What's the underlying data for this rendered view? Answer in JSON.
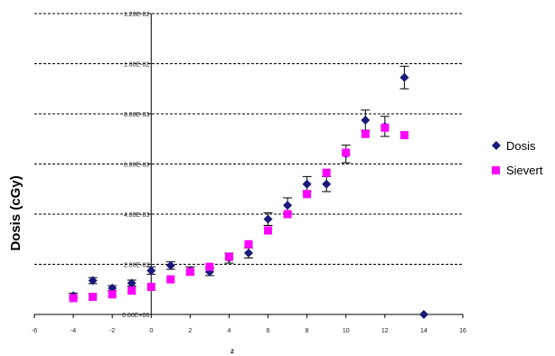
{
  "chart_data": {
    "type": "scatter",
    "xlabel": "z",
    "ylabel": "Dosis (cGy)",
    "xlim": [
      -6,
      16
    ],
    "ylim": [
      0,
      0.012
    ],
    "x_ticks": [
      "-6",
      "-4",
      "-2",
      "0",
      "2",
      "4",
      "6",
      "8",
      "10",
      "12",
      "14",
      "16"
    ],
    "x_tick_values": [
      -6,
      -4,
      -2,
      0,
      2,
      4,
      6,
      8,
      10,
      12,
      14,
      16
    ],
    "y_ticks": [
      "0.00E+00",
      "2.00E-03",
      "4.00E-03",
      "6.00E-03",
      "8.00E-03",
      "1.00E-02",
      "1.20E-02"
    ],
    "y_tick_values": [
      0,
      0.002,
      0.004,
      0.006,
      0.008,
      0.01,
      0.012
    ],
    "grid": "horizontal-dashed",
    "legend_position": "right",
    "series": [
      {
        "name": "Dosis",
        "marker": "diamond",
        "color": "#1a1a7a",
        "points": [
          {
            "x": -4,
            "y": 0.00075,
            "err": 0.0001
          },
          {
            "x": -3,
            "y": 0.00135,
            "err": 0.00012
          },
          {
            "x": -2,
            "y": 0.00105,
            "err": 0.0001
          },
          {
            "x": -1,
            "y": 0.00125,
            "err": 0.00012
          },
          {
            "x": 0,
            "y": 0.00175,
            "err": 0.00015
          },
          {
            "x": 1,
            "y": 0.00195,
            "err": 0.00015
          },
          {
            "x": 2,
            "y": 0.00175,
            "err": 0.00015
          },
          {
            "x": 3,
            "y": 0.0017,
            "err": 0.00015
          },
          {
            "x": 4,
            "y": 0.00225,
            "err": 0.0002
          },
          {
            "x": 5,
            "y": 0.00245,
            "err": 0.0002
          },
          {
            "x": 6,
            "y": 0.0038,
            "err": 0.00025
          },
          {
            "x": 7,
            "y": 0.00435,
            "err": 0.0003
          },
          {
            "x": 8,
            "y": 0.0052,
            "err": 0.0003
          },
          {
            "x": 9,
            "y": 0.0052,
            "err": 0.0003
          },
          {
            "x": 10,
            "y": 0.0064,
            "err": 0.00035
          },
          {
            "x": 11,
            "y": 0.00775,
            "err": 0.0004
          },
          {
            "x": 12,
            "y": 0.0075,
            "err": 0.0004
          },
          {
            "x": 13,
            "y": 0.00945,
            "err": 0.00045
          },
          {
            "x": 14,
            "y": 0.0,
            "err": 0
          }
        ]
      },
      {
        "name": "Sievert",
        "marker": "square",
        "color": "#ff00ff",
        "points": [
          {
            "x": -4,
            "y": 0.00065
          },
          {
            "x": -3,
            "y": 0.0007
          },
          {
            "x": -2,
            "y": 0.0008
          },
          {
            "x": -1,
            "y": 0.00095
          },
          {
            "x": 0,
            "y": 0.0011
          },
          {
            "x": 1,
            "y": 0.0014
          },
          {
            "x": 2,
            "y": 0.0017
          },
          {
            "x": 3,
            "y": 0.0019
          },
          {
            "x": 4,
            "y": 0.0023
          },
          {
            "x": 5,
            "y": 0.0028
          },
          {
            "x": 6,
            "y": 0.00335
          },
          {
            "x": 7,
            "y": 0.004
          },
          {
            "x": 8,
            "y": 0.0048
          },
          {
            "x": 9,
            "y": 0.00565
          },
          {
            "x": 10,
            "y": 0.00645
          },
          {
            "x": 11,
            "y": 0.0072
          },
          {
            "x": 12,
            "y": 0.00745
          },
          {
            "x": 13,
            "y": 0.00715
          }
        ]
      }
    ]
  }
}
